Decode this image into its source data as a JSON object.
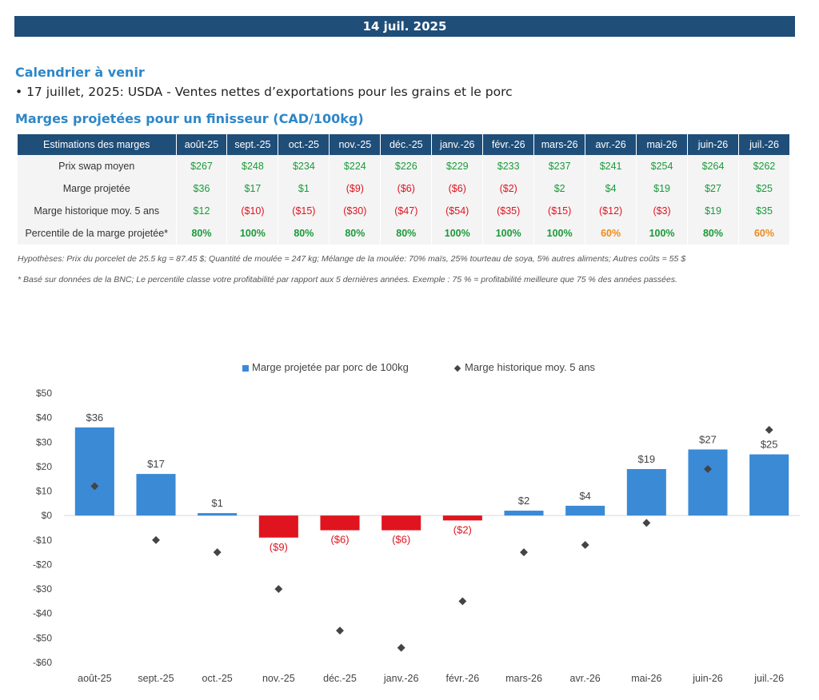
{
  "header": {
    "date": "14 juil. 2025"
  },
  "calendar": {
    "title": "Calendrier à venir",
    "items": [
      "• 17 juillet, 2025: USDA - Ventes nettes d’exportations pour les grains et le porc"
    ]
  },
  "margins_section": {
    "title": "Marges projetées pour un finisseur (CAD/100kg)"
  },
  "table": {
    "header_label": "Estimations des marges",
    "months": [
      "août-25",
      "sept.-25",
      "oct.-25",
      "nov.-25",
      "déc.-25",
      "janv.-26",
      "févr.-26",
      "mars-26",
      "avr.-26",
      "mai-26",
      "juin-26",
      "juil.-26"
    ],
    "rows": [
      {
        "label": "Prix swap moyen",
        "cells": [
          {
            "text": "$267",
            "tone": "pos"
          },
          {
            "text": "$248",
            "tone": "pos"
          },
          {
            "text": "$234",
            "tone": "pos"
          },
          {
            "text": "$224",
            "tone": "pos"
          },
          {
            "text": "$226",
            "tone": "pos"
          },
          {
            "text": "$229",
            "tone": "pos"
          },
          {
            "text": "$233",
            "tone": "pos"
          },
          {
            "text": "$237",
            "tone": "pos"
          },
          {
            "text": "$241",
            "tone": "pos"
          },
          {
            "text": "$254",
            "tone": "pos"
          },
          {
            "text": "$264",
            "tone": "pos"
          },
          {
            "text": "$262",
            "tone": "pos"
          }
        ]
      },
      {
        "label": "Marge projetée",
        "cells": [
          {
            "text": "$36",
            "tone": "pos"
          },
          {
            "text": "$17",
            "tone": "pos"
          },
          {
            "text": "$1",
            "tone": "pos"
          },
          {
            "text": "($9)",
            "tone": "neg"
          },
          {
            "text": "($6)",
            "tone": "neg"
          },
          {
            "text": "($6)",
            "tone": "neg"
          },
          {
            "text": "($2)",
            "tone": "neg"
          },
          {
            "text": "$2",
            "tone": "pos"
          },
          {
            "text": "$4",
            "tone": "pos"
          },
          {
            "text": "$19",
            "tone": "pos"
          },
          {
            "text": "$27",
            "tone": "pos"
          },
          {
            "text": "$25",
            "tone": "pos"
          }
        ]
      },
      {
        "label": "Marge historique moy. 5 ans",
        "cells": [
          {
            "text": "$12",
            "tone": "pos"
          },
          {
            "text": "($10)",
            "tone": "neg"
          },
          {
            "text": "($15)",
            "tone": "neg"
          },
          {
            "text": "($30)",
            "tone": "neg"
          },
          {
            "text": "($47)",
            "tone": "neg"
          },
          {
            "text": "($54)",
            "tone": "neg"
          },
          {
            "text": "($35)",
            "tone": "neg"
          },
          {
            "text": "($15)",
            "tone": "neg"
          },
          {
            "text": "($12)",
            "tone": "neg"
          },
          {
            "text": "($3)",
            "tone": "neg"
          },
          {
            "text": "$19",
            "tone": "pos"
          },
          {
            "text": "$35",
            "tone": "pos"
          }
        ]
      },
      {
        "label": "Percentile de la marge projetée*",
        "cells": [
          {
            "text": "80%",
            "tone": "pct-green"
          },
          {
            "text": "100%",
            "tone": "pct-green"
          },
          {
            "text": "80%",
            "tone": "pct-green"
          },
          {
            "text": "80%",
            "tone": "pct-green"
          },
          {
            "text": "80%",
            "tone": "pct-green"
          },
          {
            "text": "100%",
            "tone": "pct-green"
          },
          {
            "text": "100%",
            "tone": "pct-green"
          },
          {
            "text": "100%",
            "tone": "pct-green"
          },
          {
            "text": "60%",
            "tone": "pct-orange"
          },
          {
            "text": "100%",
            "tone": "pct-green"
          },
          {
            "text": "80%",
            "tone": "pct-green"
          },
          {
            "text": "60%",
            "tone": "pct-orange"
          }
        ]
      }
    ]
  },
  "notes": {
    "hypotheses": "Hypothèses: Prix du porcelet de 25.5 kg = 87.45 $; Quantité de moulée = 247 kg; Mélange de la moulée: 70% maïs, 25% tourteau de soya, 5% autres aliments; Autres coûts = 55 $",
    "percentile": "* Basé sur données de la BNC; Le percentile classe votre profitabilité par rapport aux 5 dernières années. Exemple : 75 % = profitabilité meilleure que 75 % des années passées."
  },
  "colors": {
    "header_bg": "#1f4e79",
    "accent_title": "#2e87c8",
    "bar_positive": "#3a8ad6",
    "bar_negative": "#e0141e",
    "marker": "#444444",
    "positive_text": "#1a9a3a",
    "orange_text": "#f08a1c"
  },
  "chart_data": {
    "type": "bar",
    "categories": [
      "août-25",
      "sept.-25",
      "oct.-25",
      "nov.-25",
      "déc.-25",
      "janv.-26",
      "févr.-26",
      "mars-26",
      "avr.-26",
      "mai-26",
      "juin-26",
      "juil.-26"
    ],
    "series": [
      {
        "name": "Marge projetée par porc de 100kg",
        "kind": "bar",
        "values": [
          36,
          17,
          1,
          -9,
          -6,
          -6,
          -2,
          2,
          4,
          19,
          27,
          25
        ],
        "data_labels": [
          "$36",
          "$17",
          "$1",
          "($9)",
          "($6)",
          "($6)",
          "($2)",
          "$2",
          "$4",
          "$19",
          "$27",
          "$25"
        ]
      },
      {
        "name": "Marge historique moy. 5 ans",
        "kind": "marker",
        "values": [
          12,
          -10,
          -15,
          -30,
          -47,
          -54,
          -35,
          -15,
          -12,
          -3,
          19,
          35
        ]
      }
    ],
    "ylim": [
      -60,
      50
    ],
    "yticks": [
      50,
      40,
      30,
      20,
      10,
      0,
      -10,
      -20,
      -30,
      -40,
      -50,
      -60
    ],
    "ytick_labels": [
      "$50",
      "$40",
      "$30",
      "$20",
      "$10",
      "$0",
      "-$10",
      "-$20",
      "-$30",
      "-$40",
      "-$50",
      "-$60"
    ],
    "legend_position": "top-center",
    "grid": false
  }
}
